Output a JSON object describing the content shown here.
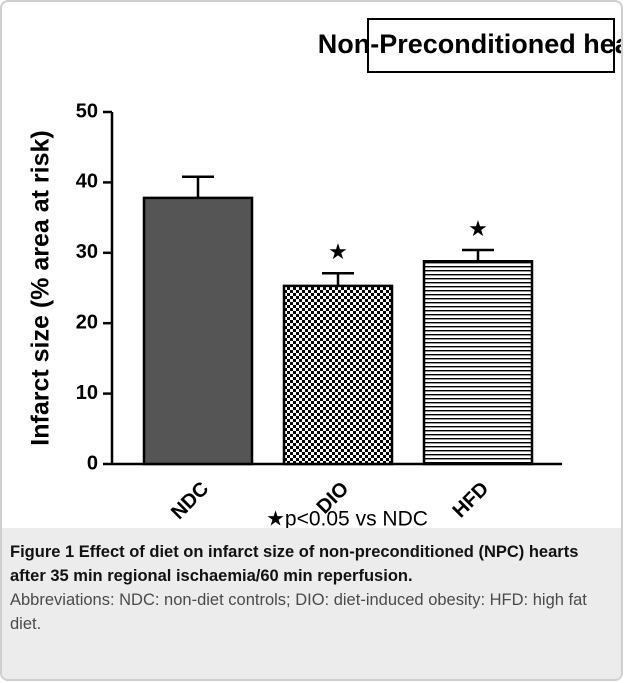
{
  "chart_data": {
    "type": "bar",
    "title": "Non-Preconditioned hearts",
    "y_label": "Infarct size (% area at risk)",
    "categories": [
      "NDC",
      "DIO",
      "HFD"
    ],
    "values": [
      37.8,
      25.3,
      28.8
    ],
    "errors": [
      3.0,
      1.8,
      1.6
    ],
    "markers": [
      null,
      "★",
      "★"
    ],
    "patterns": [
      "solid",
      "checker",
      "hlines"
    ],
    "color": "#555555",
    "ylim": [
      0,
      50
    ],
    "yticks": [
      0,
      10,
      20,
      30,
      40,
      50
    ],
    "annotation": "★p<0.05 vs NDC"
  },
  "caption": {
    "label": "Figure 1",
    "title": "Effect of diet on infarct size of non-preconditioned (NPC) hearts after 35 min regional ischaemia/60 min reperfusion.",
    "text": "Abbreviations: NDC: non-diet controls; DIO: diet-induced obesity: HFD: high fat diet."
  }
}
